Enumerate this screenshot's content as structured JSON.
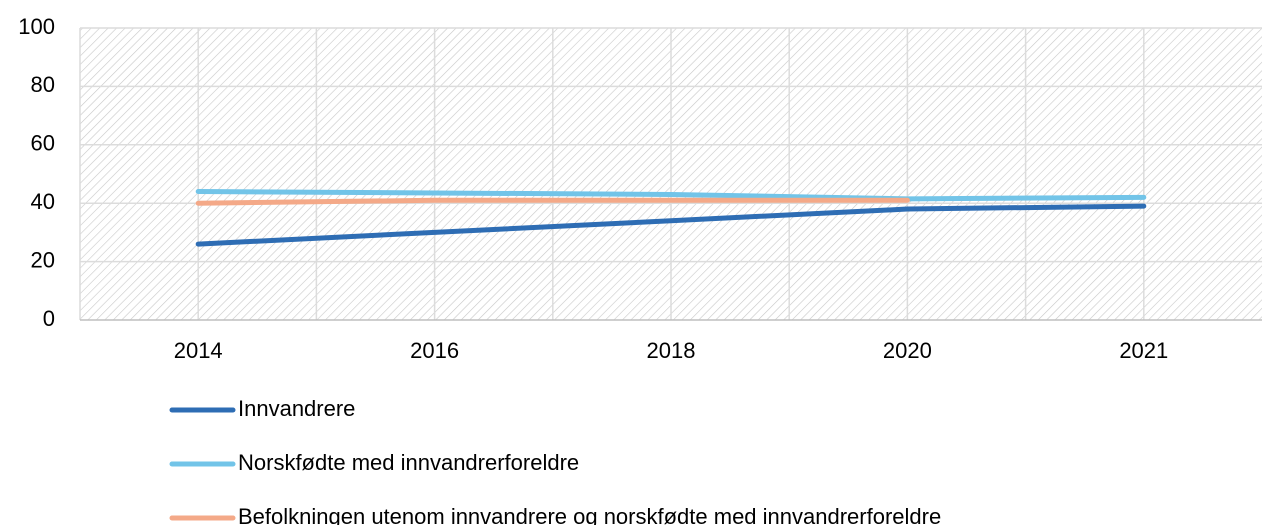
{
  "chart_data": {
    "type": "line",
    "categories": [
      "2014",
      "2016",
      "2018",
      "2020",
      "2021"
    ],
    "series": [
      {
        "name": "Innvandrere",
        "color": "#2e6db4",
        "values": [
          26,
          30,
          34,
          38,
          39
        ]
      },
      {
        "name": "Norskfødte med innvandrerforeldre",
        "color": "#72c4e8",
        "values": [
          44,
          43.5,
          43,
          41.5,
          42
        ]
      },
      {
        "name": "Befolkningen utenom innvandrere og norskfødte med innvandrerforeldre",
        "color": "#f4a988",
        "values": [
          40,
          41,
          41,
          41,
          null
        ]
      }
    ],
    "ylim": [
      0,
      100
    ],
    "yticks": [
      0,
      20,
      40,
      60,
      80,
      100
    ],
    "grid": true,
    "legend": "bottom"
  }
}
